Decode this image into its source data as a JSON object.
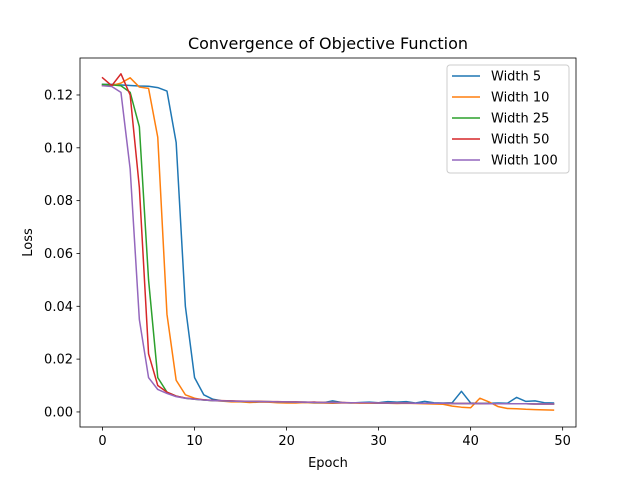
{
  "chart_data": {
    "type": "line",
    "title": "Convergence of Objective Function",
    "xlabel": "Epoch",
    "ylabel": "Loss",
    "xlim": [
      -2.45,
      51.45
    ],
    "ylim": [
      -0.0057,
      0.134
    ],
    "xticks": [
      0,
      10,
      20,
      30,
      40,
      50
    ],
    "yticks": [
      0.0,
      0.02,
      0.04,
      0.06,
      0.08,
      0.1,
      0.12
    ],
    "xtick_labels": [
      "0",
      "10",
      "20",
      "30",
      "40",
      "50"
    ],
    "ytick_labels": [
      "0.00",
      "0.02",
      "0.04",
      "0.06",
      "0.08",
      "0.10",
      "0.12"
    ],
    "grid": false,
    "legend_position": "top-right",
    "x": [
      0,
      1,
      2,
      3,
      4,
      5,
      6,
      7,
      8,
      9,
      10,
      11,
      12,
      13,
      14,
      15,
      16,
      17,
      18,
      19,
      20,
      21,
      22,
      23,
      24,
      25,
      26,
      27,
      28,
      29,
      30,
      31,
      32,
      33,
      34,
      35,
      36,
      37,
      38,
      39,
      40,
      41,
      42,
      43,
      44,
      45,
      46,
      47,
      48,
      49
    ],
    "series": [
      {
        "name": "Width 5",
        "color": "#1f77b4",
        "values": [
          0.124,
          0.124,
          0.1238,
          0.1236,
          0.1234,
          0.1233,
          0.1228,
          0.1215,
          0.102,
          0.04,
          0.013,
          0.0065,
          0.0048,
          0.0042,
          0.0041,
          0.004,
          0.0039,
          0.0039,
          0.0038,
          0.0037,
          0.0036,
          0.0037,
          0.0036,
          0.0037,
          0.0035,
          0.0042,
          0.0036,
          0.0034,
          0.0036,
          0.0037,
          0.0035,
          0.0039,
          0.0037,
          0.0039,
          0.0034,
          0.004,
          0.0035,
          0.0034,
          0.0035,
          0.0078,
          0.0034,
          0.0032,
          0.0033,
          0.0034,
          0.0033,
          0.0055,
          0.004,
          0.0042,
          0.0035,
          0.0034
        ]
      },
      {
        "name": "Width 10",
        "color": "#ff7f0e",
        "values": [
          0.1235,
          0.1236,
          0.1245,
          0.1265,
          0.123,
          0.1225,
          0.104,
          0.037,
          0.012,
          0.0065,
          0.0052,
          0.0045,
          0.0043,
          0.0041,
          0.0038,
          0.0038,
          0.0036,
          0.0037,
          0.0037,
          0.0035,
          0.0034,
          0.0034,
          0.0036,
          0.0034,
          0.0034,
          0.0033,
          0.0034,
          0.0034,
          0.0033,
          0.0033,
          0.0033,
          0.0033,
          0.0032,
          0.0033,
          0.0032,
          0.0031,
          0.003,
          0.0029,
          0.0022,
          0.0018,
          0.0016,
          0.0052,
          0.0038,
          0.002,
          0.0013,
          0.0012,
          0.001,
          0.0009,
          0.0008,
          0.0007
        ]
      },
      {
        "name": "Width 25",
        "color": "#2ca02c",
        "values": [
          0.124,
          0.1238,
          0.1235,
          0.121,
          0.108,
          0.05,
          0.013,
          0.0075,
          0.006,
          0.0052,
          0.0048,
          0.0045,
          0.0043,
          0.0042,
          0.0041,
          0.004,
          0.004,
          0.0039,
          0.0039,
          0.0038,
          0.0038,
          0.0037,
          0.0037,
          0.0036,
          0.0036,
          0.0036,
          0.0035,
          0.0035,
          0.0035,
          0.0035,
          0.0034,
          0.0034,
          0.0034,
          0.0034,
          0.0033,
          0.0033,
          0.0033,
          0.0033,
          0.0032,
          0.0032,
          0.0032,
          0.0032,
          0.0031,
          0.0031,
          0.0031,
          0.0031,
          0.0031,
          0.003,
          0.003,
          0.003
        ]
      },
      {
        "name": "Width 50",
        "color": "#d62728",
        "values": [
          0.1265,
          0.1235,
          0.128,
          0.12,
          0.085,
          0.022,
          0.01,
          0.0075,
          0.006,
          0.0053,
          0.0049,
          0.0046,
          0.0044,
          0.0043,
          0.0042,
          0.0041,
          0.004,
          0.004,
          0.0039,
          0.0039,
          0.0038,
          0.0038,
          0.0037,
          0.0037,
          0.0036,
          0.0036,
          0.0036,
          0.0035,
          0.0035,
          0.0035,
          0.0034,
          0.0034,
          0.0034,
          0.0034,
          0.0033,
          0.0033,
          0.0033,
          0.0033,
          0.0032,
          0.0032,
          0.0032,
          0.0032,
          0.0031,
          0.0031,
          0.0031,
          0.0031,
          0.0031,
          0.003,
          0.003,
          0.003
        ]
      },
      {
        "name": "Width 100",
        "color": "#9467bd",
        "values": [
          0.1235,
          0.1232,
          0.121,
          0.092,
          0.035,
          0.013,
          0.0085,
          0.007,
          0.0058,
          0.0052,
          0.0048,
          0.0045,
          0.0043,
          0.0042,
          0.0041,
          0.004,
          0.004,
          0.0039,
          0.0039,
          0.0038,
          0.0038,
          0.0037,
          0.0037,
          0.0036,
          0.0036,
          0.0036,
          0.0035,
          0.0035,
          0.0035,
          0.0035,
          0.0034,
          0.0034,
          0.0034,
          0.0034,
          0.0033,
          0.0033,
          0.0033,
          0.0033,
          0.0032,
          0.0032,
          0.0032,
          0.0032,
          0.0031,
          0.0031,
          0.0031,
          0.0031,
          0.0031,
          0.003,
          0.003,
          0.003
        ]
      }
    ]
  }
}
